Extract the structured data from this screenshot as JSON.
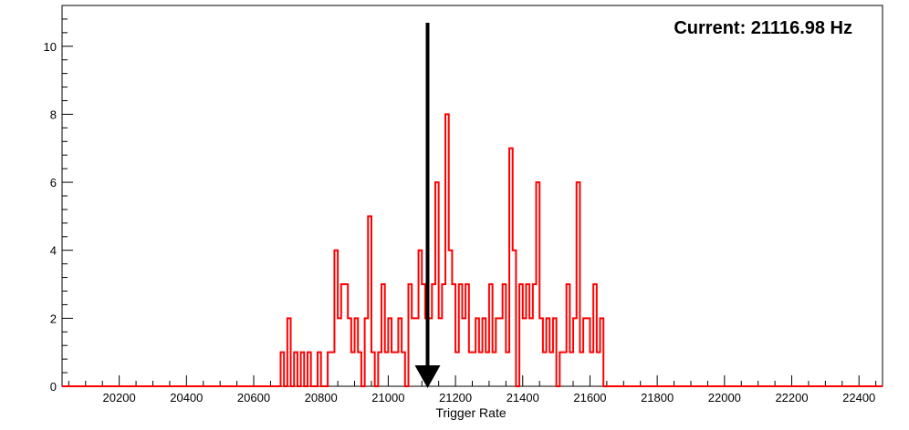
{
  "chart_data": {
    "type": "histogram",
    "title": "",
    "xlabel": "Trigger Rate",
    "ylabel": "",
    "annotation": "Current: 21116.98 Hz",
    "marker_value": 21116.98,
    "xlim": [
      20030,
      22470
    ],
    "ylim": [
      0,
      11.2
    ],
    "x_ticks": [
      20200,
      20400,
      20600,
      20800,
      21000,
      21200,
      21400,
      21600,
      21800,
      22000,
      22200,
      22400
    ],
    "y_ticks": [
      0,
      2,
      4,
      6,
      8,
      10
    ],
    "grid": false,
    "legend": "none",
    "line_color": "#ff0000",
    "marker_color": "#000000",
    "bin_width": 10,
    "bins": [
      [
        20680,
        1
      ],
      [
        20700,
        2
      ],
      [
        20720,
        1
      ],
      [
        20740,
        1
      ],
      [
        20760,
        1
      ],
      [
        20790,
        1
      ],
      [
        20820,
        1
      ],
      [
        20830,
        1
      ],
      [
        20840,
        4
      ],
      [
        20850,
        2
      ],
      [
        20860,
        3
      ],
      [
        20870,
        3
      ],
      [
        20880,
        2
      ],
      [
        20890,
        1
      ],
      [
        20900,
        2
      ],
      [
        20910,
        1
      ],
      [
        20920,
        0
      ],
      [
        20930,
        2
      ],
      [
        20940,
        5
      ],
      [
        20950,
        1
      ],
      [
        20960,
        0
      ],
      [
        20970,
        1
      ],
      [
        20980,
        3
      ],
      [
        20990,
        1
      ],
      [
        21000,
        2
      ],
      [
        21010,
        1
      ],
      [
        21020,
        1
      ],
      [
        21030,
        2
      ],
      [
        21040,
        1
      ],
      [
        21050,
        0
      ],
      [
        21060,
        3
      ],
      [
        21070,
        2
      ],
      [
        21080,
        2
      ],
      [
        21090,
        4
      ],
      [
        21100,
        3
      ],
      [
        21110,
        2
      ],
      [
        21120,
        2
      ],
      [
        21130,
        3
      ],
      [
        21140,
        6
      ],
      [
        21150,
        2
      ],
      [
        21160,
        3
      ],
      [
        21170,
        8
      ],
      [
        21180,
        4
      ],
      [
        21190,
        3
      ],
      [
        21200,
        1
      ],
      [
        21210,
        3
      ],
      [
        21220,
        2
      ],
      [
        21230,
        3
      ],
      [
        21240,
        1
      ],
      [
        21250,
        1
      ],
      [
        21260,
        2
      ],
      [
        21270,
        1
      ],
      [
        21280,
        2
      ],
      [
        21290,
        1
      ],
      [
        21300,
        3
      ],
      [
        21310,
        1
      ],
      [
        21320,
        2
      ],
      [
        21330,
        2
      ],
      [
        21340,
        3
      ],
      [
        21350,
        1
      ],
      [
        21360,
        7
      ],
      [
        21370,
        4
      ],
      [
        21380,
        0
      ],
      [
        21390,
        3
      ],
      [
        21400,
        2
      ],
      [
        21410,
        3
      ],
      [
        21420,
        2
      ],
      [
        21430,
        3
      ],
      [
        21440,
        6
      ],
      [
        21450,
        2
      ],
      [
        21460,
        1
      ],
      [
        21470,
        2
      ],
      [
        21480,
        1
      ],
      [
        21490,
        2
      ],
      [
        21500,
        0
      ],
      [
        21510,
        1
      ],
      [
        21520,
        1
      ],
      [
        21530,
        3
      ],
      [
        21540,
        1
      ],
      [
        21550,
        2
      ],
      [
        21560,
        6
      ],
      [
        21570,
        1
      ],
      [
        21580,
        2
      ],
      [
        21590,
        2
      ],
      [
        21600,
        1
      ],
      [
        21610,
        3
      ],
      [
        21620,
        1
      ],
      [
        21630,
        2
      ],
      [
        21640,
        0
      ]
    ]
  }
}
